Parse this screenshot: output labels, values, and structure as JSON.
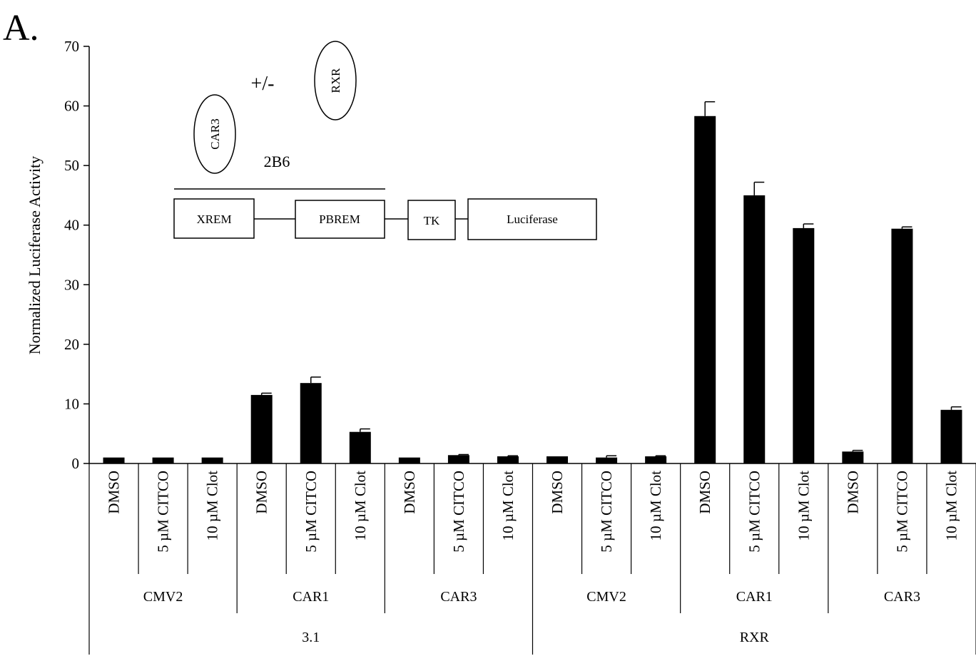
{
  "panel_label": "A.",
  "chart_data": {
    "type": "bar",
    "ylabel": "Normalized Luciferase Activity",
    "ylim": [
      0,
      70
    ],
    "yticks": [
      0,
      10,
      20,
      30,
      40,
      50,
      60,
      70
    ],
    "grid": false,
    "legend": "none",
    "categories": [
      {
        "label": "DMSO",
        "sub": "CMV2",
        "group": "3.1"
      },
      {
        "label": "5 µM CITCO",
        "sub": "CMV2",
        "group": "3.1"
      },
      {
        "label": "10 µM Clot",
        "sub": "CMV2",
        "group": "3.1"
      },
      {
        "label": "DMSO",
        "sub": "CAR1",
        "group": "3.1"
      },
      {
        "label": "5 µM CITCO",
        "sub": "CAR1",
        "group": "3.1"
      },
      {
        "label": "10 µM Clot",
        "sub": "CAR1",
        "group": "3.1"
      },
      {
        "label": "DMSO",
        "sub": "CAR3",
        "group": "3.1"
      },
      {
        "label": "5 µM CITCO",
        "sub": "CAR3",
        "group": "3.1"
      },
      {
        "label": "10 µM Clot",
        "sub": "CAR3",
        "group": "3.1"
      },
      {
        "label": "DMSO",
        "sub": "CMV2",
        "group": "RXR"
      },
      {
        "label": "5 µM CITCO",
        "sub": "CMV2",
        "group": "RXR"
      },
      {
        "label": "10 µM Clot",
        "sub": "CMV2",
        "group": "RXR"
      },
      {
        "label": "DMSO",
        "sub": "CAR1",
        "group": "RXR"
      },
      {
        "label": "5 µM CITCO",
        "sub": "CAR1",
        "group": "RXR"
      },
      {
        "label": "10 µM Clot",
        "sub": "CAR1",
        "group": "RXR"
      },
      {
        "label": "DMSO",
        "sub": "CAR3",
        "group": "RXR"
      },
      {
        "label": "5 µM CITCO",
        "sub": "CAR3",
        "group": "RXR"
      },
      {
        "label": "10 µM Clot",
        "sub": "CAR3",
        "group": "RXR"
      }
    ],
    "values": [
      1.0,
      1.0,
      1.0,
      11.5,
      13.5,
      5.3,
      1.0,
      1.4,
      1.2,
      1.2,
      1.0,
      1.2,
      58.3,
      45.0,
      39.5,
      2.0,
      39.4,
      9.0
    ],
    "errors": [
      0.0,
      0.0,
      0.0,
      0.3,
      1.0,
      0.5,
      0.0,
      0.1,
      0.1,
      0.0,
      0.3,
      0.1,
      2.4,
      2.2,
      0.7,
      0.2,
      0.3,
      0.5
    ],
    "bar_color": "#000000",
    "subgroups": [
      "CMV2",
      "CAR1",
      "CAR3",
      "CMV2",
      "CAR1",
      "CAR3"
    ],
    "groups": [
      "3.1",
      "RXR"
    ]
  },
  "diagram": {
    "plus_minus": "+/-",
    "rxr": "RXR",
    "car3": "CAR3",
    "gene": "2B6",
    "boxes": [
      "XREM",
      "PBREM",
      "TK",
      "Luciferase"
    ]
  }
}
